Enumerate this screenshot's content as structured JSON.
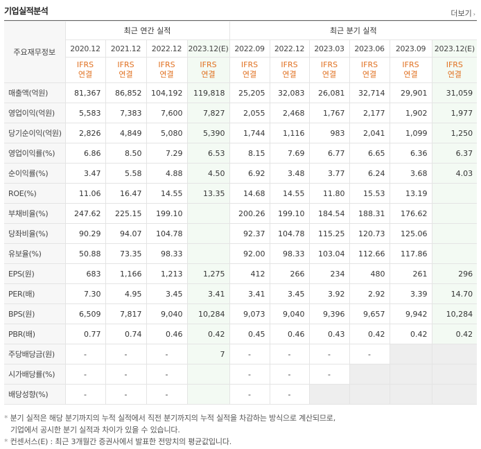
{
  "header": {
    "title": "기업실적분석",
    "more_label": "더보기",
    "more_arrow": "›"
  },
  "table": {
    "corner_label": "주요재무정보",
    "annual_group": "최근 연간 실적",
    "quarter_group": "최근 분기 실적",
    "annual_periods": [
      "2020.12",
      "2021.12",
      "2022.12",
      "2023.12(E)"
    ],
    "quarter_periods": [
      "2022.09",
      "2022.12",
      "2023.03",
      "2023.06",
      "2023.09",
      "2023.12(E)"
    ],
    "ifrs_line1": "IFRS",
    "ifrs_line2": "연결",
    "rows": [
      {
        "label": "매출액(억원)",
        "values": [
          "81,367",
          "86,852",
          "104,192",
          "119,818",
          "25,205",
          "32,083",
          "26,081",
          "32,714",
          "29,901",
          "31,059"
        ]
      },
      {
        "label": "영업이익(억원)",
        "values": [
          "5,583",
          "7,383",
          "7,600",
          "7,827",
          "2,055",
          "2,468",
          "1,767",
          "2,177",
          "1,902",
          "1,977"
        ]
      },
      {
        "label": "당기순이익(억원)",
        "values": [
          "2,826",
          "4,849",
          "5,080",
          "5,390",
          "1,744",
          "1,116",
          "983",
          "2,041",
          "1,099",
          "1,250"
        ]
      },
      {
        "label": "영업이익률(%)",
        "values": [
          "6.86",
          "8.50",
          "7.29",
          "6.53",
          "8.15",
          "7.69",
          "6.77",
          "6.65",
          "6.36",
          "6.37"
        ]
      },
      {
        "label": "순이익률(%)",
        "values": [
          "3.47",
          "5.58",
          "4.88",
          "4.50",
          "6.92",
          "3.48",
          "3.77",
          "6.24",
          "3.68",
          "4.03"
        ]
      },
      {
        "label": "ROE(%)",
        "values": [
          "11.06",
          "16.47",
          "14.55",
          "13.35",
          "14.68",
          "14.55",
          "11.80",
          "15.53",
          "13.19",
          ""
        ]
      },
      {
        "label": "부채비율(%)",
        "values": [
          "247.62",
          "225.15",
          "199.10",
          "",
          "200.26",
          "199.10",
          "184.54",
          "188.31",
          "176.62",
          ""
        ]
      },
      {
        "label": "당좌비율(%)",
        "values": [
          "90.29",
          "94.07",
          "104.78",
          "",
          "92.37",
          "104.78",
          "115.25",
          "120.73",
          "125.06",
          ""
        ]
      },
      {
        "label": "유보율(%)",
        "values": [
          "50.88",
          "73.35",
          "98.33",
          "",
          "92.00",
          "98.33",
          "103.04",
          "112.66",
          "117.86",
          ""
        ]
      },
      {
        "label": "EPS(원)",
        "values": [
          "683",
          "1,166",
          "1,213",
          "1,275",
          "412",
          "266",
          "234",
          "480",
          "261",
          "296"
        ]
      },
      {
        "label": "PER(배)",
        "values": [
          "7.30",
          "4.95",
          "3.45",
          "3.41",
          "3.41",
          "3.45",
          "3.92",
          "2.92",
          "3.39",
          "14.70"
        ]
      },
      {
        "label": "BPS(원)",
        "values": [
          "6,509",
          "7,817",
          "9,040",
          "10,284",
          "9,073",
          "9,040",
          "9,396",
          "9,657",
          "9,942",
          "10,284"
        ]
      },
      {
        "label": "PBR(배)",
        "values": [
          "0.77",
          "0.74",
          "0.46",
          "0.42",
          "0.45",
          "0.46",
          "0.43",
          "0.42",
          "0.42",
          "0.42"
        ]
      },
      {
        "label": "주당배당금(원)",
        "values": [
          "-",
          "-",
          "-",
          "7",
          "-",
          "-",
          "-",
          "-",
          "",
          ""
        ]
      },
      {
        "label": "시가배당률(%)",
        "values": [
          "-",
          "-",
          "-",
          "",
          "-",
          "-",
          "-",
          "",
          "",
          ""
        ]
      },
      {
        "label": "배당성향(%)",
        "values": [
          "-",
          "-",
          "-",
          "",
          "-",
          "-",
          "",
          "",
          "",
          ""
        ]
      }
    ]
  },
  "notes": {
    "line1": "분기 실적은 해당 분기까지의 누적 실적에서 직전 분기까지의 누적 실적을 차감하는 방식으로 계산되므로,",
    "line2": "기업에서 공시한 분기 실적과 차이가 있을 수 있습니다.",
    "line3": "컨센서스(E) : 최근 3개월간 증권사에서 발표한 전망치의 평균값입니다.",
    "bullet": "*"
  }
}
